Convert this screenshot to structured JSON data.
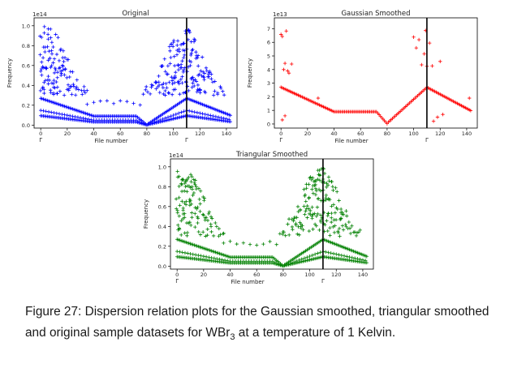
{
  "figure": {
    "caption_label": "Figure 27:",
    "caption_text_a": " Dispersion relation plots for the Gaussian smoothed, triangular smoothed and original sample datasets for WBr",
    "caption_sub": "3",
    "caption_text_b": " at a temperature of 1 Kelvin."
  },
  "chart_data": [
    {
      "type": "scatter",
      "title": "Original",
      "xlabel": "File number",
      "ylabel": "Frequency",
      "exponent_label": "1e14",
      "color": "#0000ff",
      "marker": "+",
      "xlim": [
        -5,
        148
      ],
      "ylim": [
        -0.03,
        1.08
      ],
      "xticks": [
        0,
        20,
        40,
        60,
        80,
        100,
        120,
        140
      ],
      "yticks": [
        0.0,
        0.2,
        0.4,
        0.6,
        0.8,
        1.0
      ],
      "ytick_labels": [
        "0.0",
        "0.2",
        "0.4",
        "0.6",
        "0.8",
        "1.0"
      ],
      "gamma_points": [
        0,
        110
      ],
      "gamma_label": "Γ",
      "vline_x": 110,
      "grid": false,
      "style": "original"
    },
    {
      "type": "scatter",
      "title": "Gaussian Smoothed",
      "xlabel": "File number",
      "ylabel": "Frequency",
      "exponent_label": "1e13",
      "color": "#ff0000",
      "marker": "+",
      "xlim": [
        -5,
        148
      ],
      "ylim": [
        -0.3,
        7.8
      ],
      "xticks": [
        0,
        20,
        40,
        60,
        80,
        100,
        120,
        140
      ],
      "yticks": [
        0,
        1,
        2,
        3,
        4,
        5,
        6,
        7
      ],
      "ytick_labels": [
        "0",
        "1",
        "2",
        "3",
        "4",
        "5",
        "6",
        "7"
      ],
      "gamma_points": [
        0,
        110
      ],
      "gamma_label": "Γ",
      "vline_x": 110,
      "grid": false,
      "style": "gaussian"
    },
    {
      "type": "scatter",
      "title": "Triangular Smoothed",
      "xlabel": "File number",
      "ylabel": "Frequency",
      "exponent_label": "1e14",
      "color": "#008000",
      "marker": "+",
      "xlim": [
        -5,
        148
      ],
      "ylim": [
        -0.03,
        1.08
      ],
      "xticks": [
        0,
        20,
        40,
        60,
        80,
        100,
        120,
        140
      ],
      "yticks": [
        0.0,
        0.2,
        0.4,
        0.6,
        0.8,
        1.0
      ],
      "ytick_labels": [
        "0.0",
        "0.2",
        "0.4",
        "0.6",
        "0.8",
        "1.0"
      ],
      "gamma_points": [
        0,
        110
      ],
      "gamma_label": "Γ",
      "vline_x": 110,
      "grid": false,
      "style": "original"
    }
  ]
}
